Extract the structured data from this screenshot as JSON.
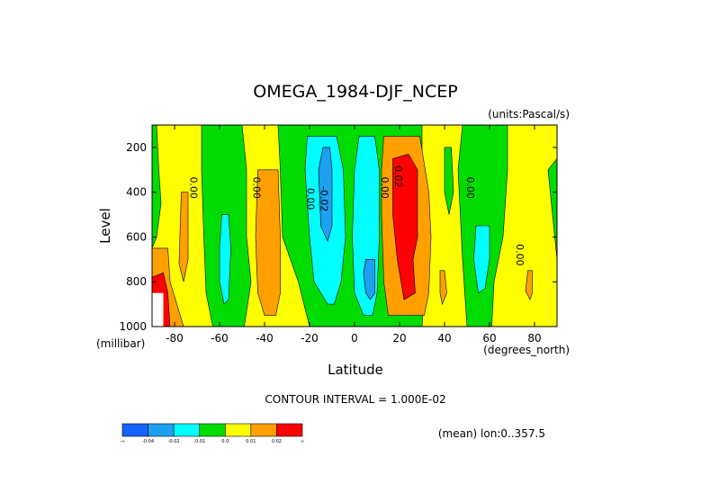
{
  "chart_data": {
    "type": "heatmap",
    "title": "OMEGA_1984-DJF_NCEP",
    "units_label": "(units:Pascal/s)",
    "xlabel": "Latitude",
    "xunit_label": "(degrees_north)",
    "ylabel": "Level",
    "yunit_label": "(millibar)",
    "xlim": [
      -90,
      90
    ],
    "ylim": [
      1000,
      100
    ],
    "y_inverted": true,
    "xticks": [
      -80,
      -60,
      -40,
      -20,
      0,
      20,
      40,
      60,
      80
    ],
    "yticks": [
      200,
      400,
      600,
      800,
      1000
    ],
    "xtick_labels": [
      "-80",
      "-60",
      "-40",
      "-20",
      "0",
      "20",
      "40",
      "60",
      "80"
    ],
    "ytick_labels": [
      "200",
      "400",
      "600",
      "800",
      "1000"
    ],
    "contour_interval_text": "CONTOUR INTERVAL = 1.000E-02",
    "mean_info": "(mean) lon:0..357.5",
    "contour_labels": [
      {
        "text": "0.00",
        "lat": -73,
        "level": 380
      },
      {
        "text": "0.00",
        "lat": -45,
        "level": 380
      },
      {
        "text": "0.00",
        "lat": -21,
        "level": 430
      },
      {
        "text": "-0.02",
        "lat": -15,
        "level": 430
      },
      {
        "text": "0.00",
        "lat": 12,
        "level": 380
      },
      {
        "text": "0.02",
        "lat": 18,
        "level": 330
      },
      {
        "text": "0.00",
        "lat": 50,
        "level": 380
      },
      {
        "text": "0.00",
        "lat": 72,
        "level": 680
      }
    ],
    "colorbar": {
      "colors": [
        "#1464ff",
        "#1ea0f0",
        "#00ffff",
        "#00dc00",
        "#ffff00",
        "#ffa000",
        "#ff0000"
      ],
      "labels": [
        "-∞",
        "-0.04",
        "-0.02",
        "-0.01",
        "0.0",
        "0.01",
        "0.02",
        "∞"
      ]
    },
    "regions": [
      {
        "color": "#ffff00",
        "points": [
          [
            -90,
            100
          ],
          [
            90,
            100
          ],
          [
            90,
            1000
          ],
          [
            -90,
            1000
          ]
        ]
      },
      {
        "color": "#00dc00",
        "points": [
          [
            -90,
            100
          ],
          [
            -88,
            100
          ],
          [
            -87,
            300
          ],
          [
            -86,
            450
          ],
          [
            -88,
            600
          ],
          [
            -90,
            650
          ]
        ]
      },
      {
        "color": "#00dc00",
        "points": [
          [
            -68,
            100
          ],
          [
            -50,
            100
          ],
          [
            -48,
            300
          ],
          [
            -48,
            600
          ],
          [
            -46,
            800
          ],
          [
            -49,
            1000
          ],
          [
            -63,
            1000
          ],
          [
            -66,
            850
          ],
          [
            -67,
            600
          ],
          [
            -68,
            300
          ]
        ]
      },
      {
        "color": "#00dc00",
        "points": [
          [
            -34,
            100
          ],
          [
            30,
            100
          ],
          [
            30,
            300
          ],
          [
            32,
            600
          ],
          [
            30,
            1000
          ],
          [
            -20,
            1000
          ],
          [
            -25,
            800
          ],
          [
            -32,
            600
          ],
          [
            -33,
            300
          ]
        ]
      },
      {
        "color": "#00dc00",
        "points": [
          [
            40,
            200
          ],
          [
            43,
            200
          ],
          [
            44,
            400
          ],
          [
            42,
            500
          ],
          [
            40,
            400
          ]
        ]
      },
      {
        "color": "#00dc00",
        "points": [
          [
            48,
            100
          ],
          [
            68,
            100
          ],
          [
            68,
            300
          ],
          [
            66,
            600
          ],
          [
            62,
            800
          ],
          [
            61,
            1000
          ],
          [
            50,
            1000
          ],
          [
            48,
            700
          ],
          [
            46,
            300
          ]
        ]
      },
      {
        "color": "#00dc00",
        "points": [
          [
            86,
            300
          ],
          [
            90,
            250
          ],
          [
            90,
            700
          ],
          [
            88,
            500
          ]
        ]
      },
      {
        "color": "#00ffff",
        "points": [
          [
            -21,
            150
          ],
          [
            -8,
            150
          ],
          [
            -5,
            300
          ],
          [
            -4,
            600
          ],
          [
            -6,
            800
          ],
          [
            -9,
            900
          ],
          [
            -12,
            900
          ],
          [
            -18,
            800
          ],
          [
            -20,
            600
          ],
          [
            -22,
            300
          ]
        ]
      },
      {
        "color": "#00ffff",
        "points": [
          [
            2,
            150
          ],
          [
            9,
            150
          ],
          [
            11,
            300
          ],
          [
            11,
            600
          ],
          [
            10,
            850
          ],
          [
            8,
            950
          ],
          [
            4,
            950
          ],
          [
            0,
            850
          ],
          [
            -1,
            600
          ],
          [
            0,
            300
          ]
        ]
      },
      {
        "color": "#00ffff",
        "points": [
          [
            -59,
            500
          ],
          [
            -56,
            500
          ],
          [
            -55,
            650
          ],
          [
            -56,
            880
          ],
          [
            -58,
            900
          ],
          [
            -60,
            800
          ],
          [
            -60,
            650
          ]
        ]
      },
      {
        "color": "#00ffff",
        "points": [
          [
            54,
            550
          ],
          [
            60,
            550
          ],
          [
            60,
            700
          ],
          [
            58,
            830
          ],
          [
            55,
            850
          ],
          [
            53,
            700
          ]
        ]
      },
      {
        "color": "#1ea0f0",
        "points": [
          [
            -14,
            200
          ],
          [
            -11,
            200
          ],
          [
            -10,
            300
          ],
          [
            -10,
            550
          ],
          [
            -12,
            620
          ],
          [
            -15,
            550
          ],
          [
            -16,
            300
          ]
        ]
      },
      {
        "color": "#1ea0f0",
        "points": [
          [
            5,
            700
          ],
          [
            9,
            700
          ],
          [
            9,
            850
          ],
          [
            7,
            880
          ],
          [
            5,
            850
          ],
          [
            4,
            760
          ]
        ]
      },
      {
        "color": "#ffa000",
        "points": [
          [
            -43,
            300
          ],
          [
            -34,
            300
          ],
          [
            -33,
            600
          ],
          [
            -33,
            850
          ],
          [
            -35,
            950
          ],
          [
            -40,
            950
          ],
          [
            -43,
            850
          ],
          [
            -44,
            600
          ]
        ]
      },
      {
        "color": "#ffa000",
        "points": [
          [
            -90,
            650
          ],
          [
            -83,
            650
          ],
          [
            -82,
            800
          ],
          [
            -79,
            900
          ],
          [
            -76,
            1000
          ],
          [
            -90,
            1000
          ]
        ]
      },
      {
        "color": "#ffa000",
        "points": [
          [
            -77,
            400
          ],
          [
            -74,
            400
          ],
          [
            -74,
            700
          ],
          [
            -76,
            800
          ],
          [
            -78,
            720
          ]
        ]
      },
      {
        "color": "#ffa000",
        "points": [
          [
            13,
            150
          ],
          [
            29,
            150
          ],
          [
            33,
            400
          ],
          [
            34,
            600
          ],
          [
            33,
            850
          ],
          [
            31,
            950
          ],
          [
            15,
            950
          ],
          [
            13,
            800
          ],
          [
            12,
            500
          ],
          [
            12,
            300
          ]
        ]
      },
      {
        "color": "#ffa000",
        "points": [
          [
            38,
            750
          ],
          [
            40,
            750
          ],
          [
            41,
            850
          ],
          [
            39,
            900
          ],
          [
            38,
            850
          ]
        ]
      },
      {
        "color": "#ffa000",
        "points": [
          [
            77,
            750
          ],
          [
            79,
            750
          ],
          [
            79,
            850
          ],
          [
            78,
            880
          ],
          [
            76,
            840
          ]
        ]
      },
      {
        "color": "#ff0000",
        "points": [
          [
            17,
            250
          ],
          [
            24,
            230
          ],
          [
            28,
            300
          ],
          [
            28,
            600
          ],
          [
            26,
            700
          ],
          [
            27,
            850
          ],
          [
            22,
            880
          ],
          [
            19,
            700
          ],
          [
            17,
            500
          ]
        ]
      },
      {
        "color": "#ff0000",
        "points": [
          [
            -90,
            780
          ],
          [
            -85,
            760
          ],
          [
            -83,
            850
          ],
          [
            -82,
            1000
          ],
          [
            -90,
            1000
          ]
        ]
      }
    ]
  }
}
